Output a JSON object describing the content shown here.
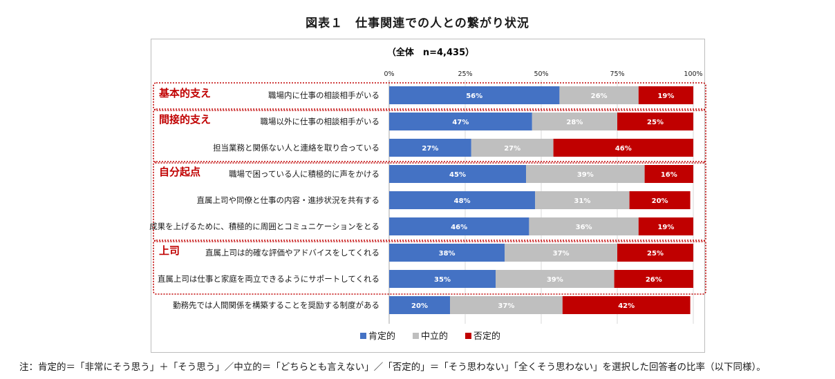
{
  "figure_title": "図表１　仕事関連での人との繋がり状況",
  "note": "注：肯定的＝「非常にそう思う」＋「そう思う」／中立的＝「どちらとも言えない」／「否定的」＝「そう思わない」「全くそう思わない」を選択した回答者の比率（以下同様）。",
  "chart_data": {
    "type": "bar",
    "orientation": "horizontal",
    "stacked": true,
    "subtitle": "（全体　n=4,435）",
    "xlim": [
      0,
      100
    ],
    "xticks": [
      "0%",
      "25%",
      "50%",
      "75%",
      "100%"
    ],
    "gridlines": true,
    "legend_position": "bottom",
    "colors": {
      "positive": "#4472c4",
      "neutral": "#bfbfbf",
      "negative": "#c00000"
    },
    "categories": [
      "職場内に仕事の相談相手がいる",
      "職場以外に仕事の相談相手がいる",
      "担当業務と関係ない人と連絡を取り合っている",
      "職場で困っている人に積極的に声をかける",
      "直属上司や同僚と仕事の内容・進捗状況を共有する",
      "成果を上げるために、積極的に周囲とコミュニケーションをとる",
      "直属上司は的確な評価やアドバイスをしてくれる",
      "直属上司は仕事と家庭を両立できるようにサポートしてくれる",
      "勤務先では人間関係を構築することを奨励する制度がある"
    ],
    "series": [
      {
        "name": "肯定的",
        "values": [
          56,
          47,
          27,
          45,
          48,
          46,
          38,
          35,
          20
        ]
      },
      {
        "name": "中立的",
        "values": [
          26,
          28,
          27,
          39,
          31,
          36,
          37,
          39,
          37
        ]
      },
      {
        "name": "否定的",
        "values": [
          19,
          25,
          46,
          16,
          20,
          19,
          25,
          26,
          42
        ]
      }
    ],
    "groups": [
      {
        "label": "基本的支え",
        "rows": [
          0,
          0
        ]
      },
      {
        "label": "間接的支え",
        "rows": [
          1,
          2
        ]
      },
      {
        "label": "自分起点",
        "rows": [
          3,
          5
        ]
      },
      {
        "label": "上司",
        "rows": [
          6,
          7
        ]
      }
    ]
  }
}
